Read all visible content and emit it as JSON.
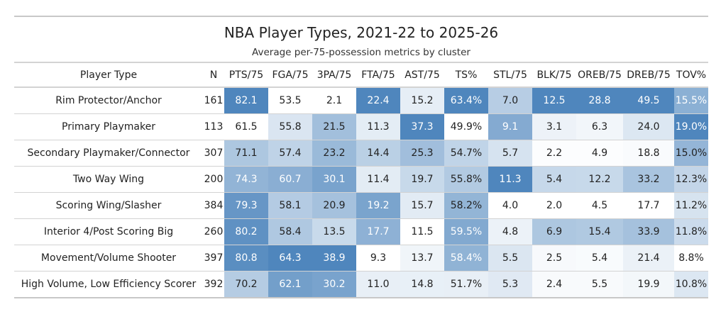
{
  "chart_data": {
    "type": "heatmap",
    "title": "NBA Player Types, 2021-22 to 2025-26",
    "subtitle": "Average per-75-possession metrics by cluster",
    "columns": [
      "Player Type",
      "N",
      "PTS/75",
      "FGA/75",
      "3PA/75",
      "FTA/75",
      "AST/75",
      "TS%",
      "STL/75",
      "BLK/75",
      "OREB/75",
      "DREB/75",
      "TOV%"
    ],
    "color_scale": {
      "low": "#ffffff",
      "high": "#4f86bd",
      "text_light": "#ffffff",
      "text_dark": "#222222"
    },
    "rows": [
      {
        "type": "Rim Protector/Anchor",
        "n": "161",
        "values": [
          82.1,
          53.5,
          2.1,
          22.4,
          15.2,
          63.4,
          7.0,
          12.5,
          28.8,
          49.5,
          15.5
        ],
        "labels": [
          "82.1",
          "53.5",
          "2.1",
          "22.4",
          "15.2",
          "63.4%",
          "7.0",
          "12.5",
          "28.8",
          "49.5",
          "15.5%"
        ]
      },
      {
        "type": "Primary Playmaker",
        "n": "113",
        "values": [
          61.5,
          55.8,
          21.5,
          11.3,
          37.3,
          49.9,
          9.1,
          3.1,
          6.3,
          24.0,
          19.0
        ],
        "labels": [
          "61.5",
          "55.8",
          "21.5",
          "11.3",
          "37.3",
          "49.9%",
          "9.1",
          "3.1",
          "6.3",
          "24.0",
          "19.0%"
        ]
      },
      {
        "type": "Secondary Playmaker/Connector",
        "n": "307",
        "values": [
          71.1,
          57.4,
          23.2,
          14.4,
          25.3,
          54.7,
          5.7,
          2.2,
          4.9,
          18.8,
          15.0
        ],
        "labels": [
          "71.1",
          "57.4",
          "23.2",
          "14.4",
          "25.3",
          "54.7%",
          "5.7",
          "2.2",
          "4.9",
          "18.8",
          "15.0%"
        ]
      },
      {
        "type": "Two Way Wing",
        "n": "200",
        "values": [
          74.3,
          60.7,
          30.1,
          11.4,
          19.7,
          55.8,
          11.3,
          5.4,
          12.2,
          33.2,
          12.3
        ],
        "labels": [
          "74.3",
          "60.7",
          "30.1",
          "11.4",
          "19.7",
          "55.8%",
          "11.3",
          "5.4",
          "12.2",
          "33.2",
          "12.3%"
        ]
      },
      {
        "type": "Scoring Wing/Slasher",
        "n": "384",
        "values": [
          79.3,
          58.1,
          20.9,
          19.2,
          15.7,
          58.2,
          4.0,
          2.0,
          4.5,
          17.7,
          11.2
        ],
        "labels": [
          "79.3",
          "58.1",
          "20.9",
          "19.2",
          "15.7",
          "58.2%",
          "4.0",
          "2.0",
          "4.5",
          "17.7",
          "11.2%"
        ]
      },
      {
        "type": "Interior 4/Post Scoring Big",
        "n": "260",
        "values": [
          80.2,
          58.4,
          13.5,
          17.7,
          11.5,
          59.5,
          4.8,
          6.9,
          15.4,
          33.9,
          11.8
        ],
        "labels": [
          "80.2",
          "58.4",
          "13.5",
          "17.7",
          "11.5",
          "59.5%",
          "4.8",
          "6.9",
          "15.4",
          "33.9",
          "11.8%"
        ]
      },
      {
        "type": "Movement/Volume Shooter",
        "n": "397",
        "values": [
          80.8,
          64.3,
          38.9,
          9.3,
          13.7,
          58.4,
          5.5,
          2.5,
          5.4,
          21.4,
          8.8
        ],
        "labels": [
          "80.8",
          "64.3",
          "38.9",
          "9.3",
          "13.7",
          "58.4%",
          "5.5",
          "2.5",
          "5.4",
          "21.4",
          "8.8%"
        ]
      },
      {
        "type": "High Volume, Low Efficiency Scorer",
        "n": "392",
        "values": [
          70.2,
          62.1,
          30.2,
          11.0,
          14.8,
          51.7,
          5.3,
          2.4,
          5.5,
          19.9,
          10.8
        ],
        "labels": [
          "70.2",
          "62.1",
          "30.2",
          "11.0",
          "14.8",
          "51.7%",
          "5.3",
          "2.4",
          "5.5",
          "19.9",
          "10.8%"
        ]
      }
    ]
  }
}
